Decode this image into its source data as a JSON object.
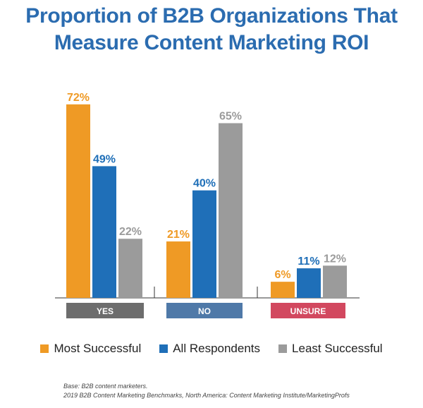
{
  "chart_data": {
    "type": "bar",
    "title_line1": "Proportion of B2B Organizations That",
    "title_line2": "Measure Content Marketing ROI",
    "categories": [
      "YES",
      "NO",
      "UNSURE"
    ],
    "category_colors": [
      "#6d6d6d",
      "#4f79a8",
      "#d2485f"
    ],
    "series": [
      {
        "name": "Most Successful",
        "color": "#ef9a25",
        "values": [
          72,
          21,
          6
        ],
        "labels": [
          "72%",
          "21%",
          "6%"
        ]
      },
      {
        "name": "All Respondents",
        "color": "#1f6fb8",
        "values": [
          49,
          40,
          11
        ],
        "labels": [
          "49%",
          "40%",
          "11%"
        ]
      },
      {
        "name": "Least Successful",
        "color": "#9b9b9b",
        "values": [
          22,
          65,
          12
        ],
        "labels": [
          "22%",
          "65%",
          "12%"
        ]
      }
    ],
    "ylim": [
      0,
      78
    ],
    "grid": false,
    "legend_position": "bottom"
  },
  "footnote": {
    "line1": "Base: B2B content marketers.",
    "line2": "2019 B2B Content Marketing Benchmarks, North America: Content Marketing Institute/MarketingProfs"
  }
}
